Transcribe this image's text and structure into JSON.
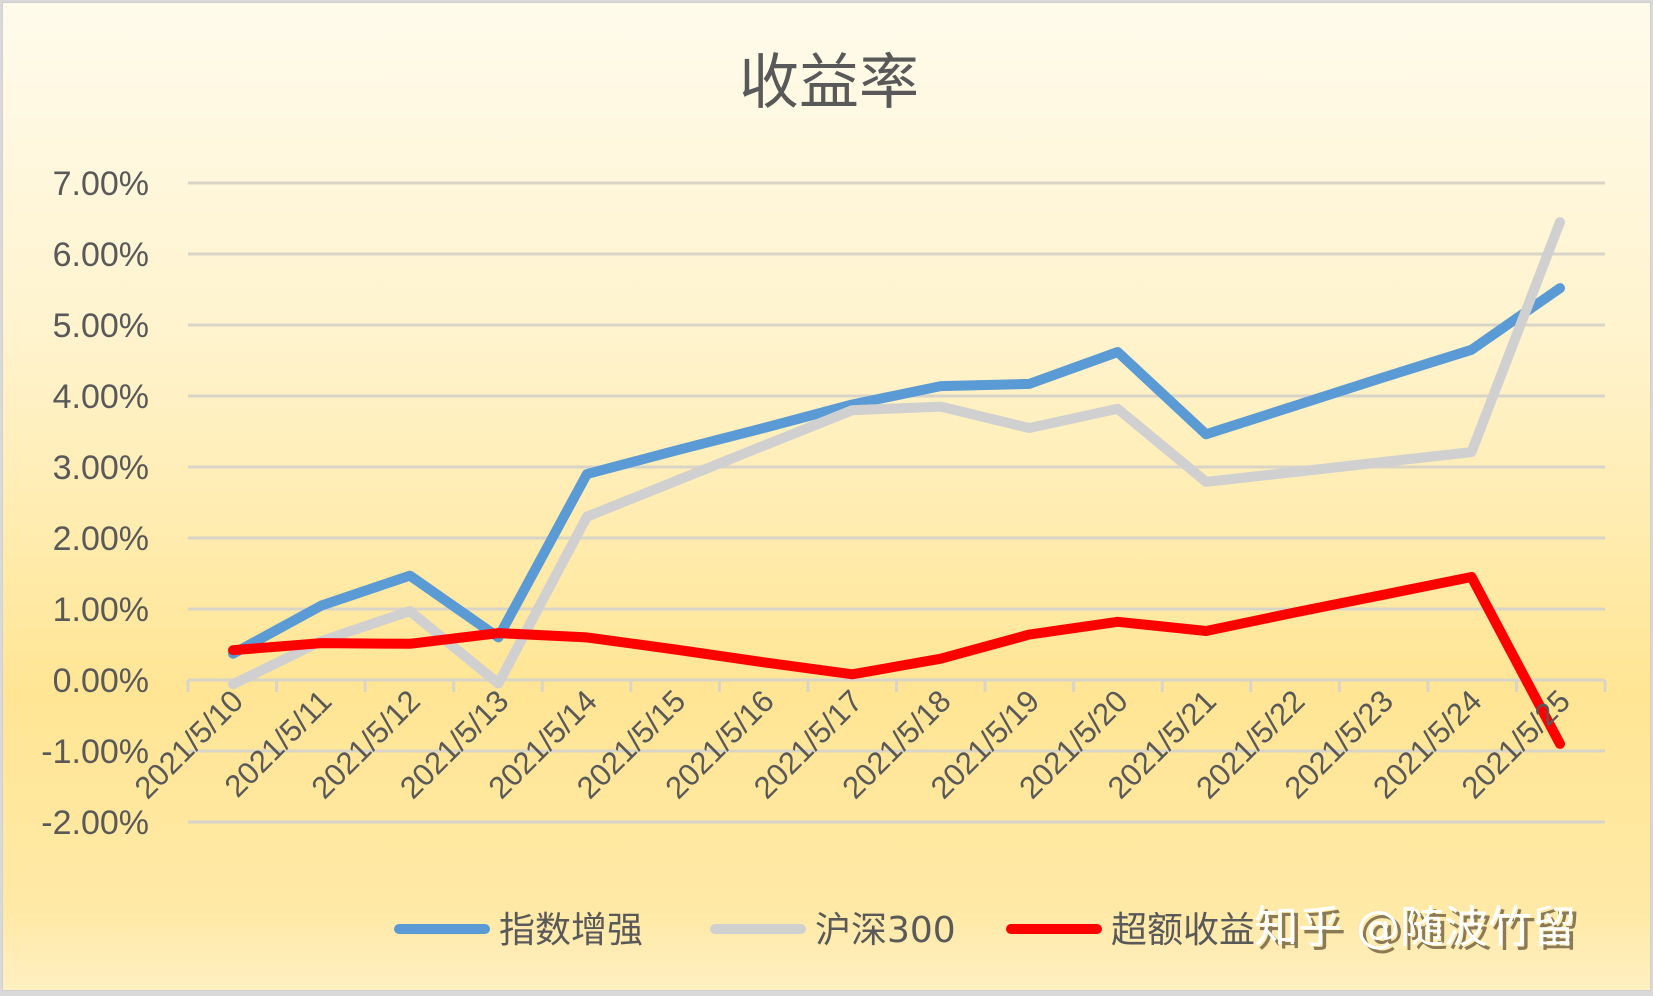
{
  "chart_data": {
    "type": "line",
    "title": "收益率",
    "xlabel": "",
    "ylabel": "",
    "ylim": [
      -0.02,
      0.07
    ],
    "yticks": [
      "7.00%",
      "6.00%",
      "5.00%",
      "4.00%",
      "3.00%",
      "2.00%",
      "1.00%",
      "0.00%",
      "-1.00%",
      "-2.00%"
    ],
    "ytick_values": [
      7,
      6,
      5,
      4,
      3,
      2,
      1,
      0,
      -1,
      -2
    ],
    "grid": true,
    "legend_position": "bottom",
    "categories": [
      "2021/5/10",
      "2021/5/11",
      "2021/5/12",
      "2021/5/13",
      "2021/5/14",
      "2021/5/15",
      "2021/5/16",
      "2021/5/17",
      "2021/5/18",
      "2021/5/19",
      "2021/5/20",
      "2021/5/21",
      "2021/5/22",
      "2021/5/23",
      "2021/5/24",
      "2021/5/25"
    ],
    "series": [
      {
        "name": "指数增强",
        "color": "#5b9bd5",
        "values": [
          0.37,
          1.05,
          1.47,
          0.6,
          2.9,
          3.23,
          3.55,
          3.88,
          4.14,
          4.17,
          4.62,
          3.46,
          3.86,
          4.26,
          4.65,
          5.52
        ]
      },
      {
        "name": "沪深300",
        "color": "#d0d0d0",
        "values": [
          -0.06,
          0.55,
          0.97,
          -0.05,
          2.3,
          2.8,
          3.3,
          3.8,
          3.85,
          3.55,
          3.82,
          2.79,
          2.93,
          3.07,
          3.21,
          6.45
        ]
      },
      {
        "name": "超额收益",
        "color": "#ff0000",
        "values": [
          0.42,
          0.52,
          0.51,
          0.66,
          0.6,
          0.43,
          0.25,
          0.08,
          0.3,
          0.64,
          0.82,
          0.69,
          0.95,
          1.2,
          1.45,
          -0.9
        ]
      }
    ],
    "value_unit": "%"
  },
  "watermark": "知乎 @随波竹留",
  "colors": {
    "gridline": "#d9d4c8",
    "text": "#595959"
  }
}
